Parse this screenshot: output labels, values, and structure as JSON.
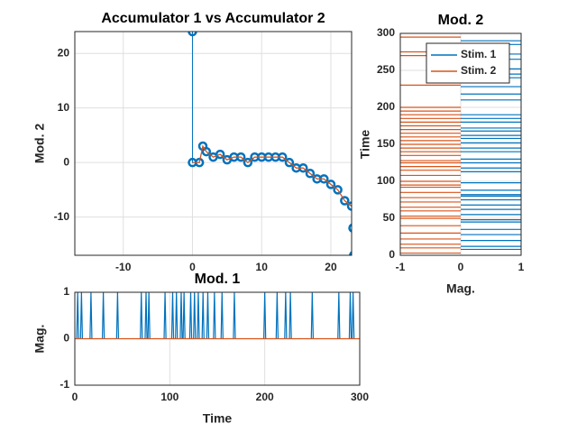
{
  "chart_data": [
    {
      "type": "line",
      "title": "Accumulator 1 vs Accumulator 2",
      "ylabel": "Mod. 2",
      "xlim": [
        -17,
        23
      ],
      "ylim": [
        -17,
        24
      ],
      "xticks": [
        -10,
        0,
        10,
        20
      ],
      "yticks": [
        -10,
        0,
        10,
        20
      ],
      "grid": true,
      "series": [
        {
          "color": "#0072bd",
          "marker": "o",
          "x": [
            0,
            0,
            1,
            1.5,
            2,
            3,
            4,
            5,
            6,
            7,
            8,
            9,
            10,
            11,
            12,
            13,
            14,
            15,
            16,
            17,
            18,
            19,
            20,
            21,
            22,
            23,
            23.2,
            23.3
          ],
          "y": [
            24,
            0,
            0,
            3,
            2,
            1,
            1.5,
            0.5,
            1,
            1,
            0,
            1,
            1,
            1,
            1,
            1,
            0,
            -1,
            -1,
            -2,
            -3,
            -3,
            -4,
            -5,
            -7,
            -8,
            -12,
            -17
          ]
        },
        {
          "color": "#d95319",
          "x": [
            0,
            1,
            1.5,
            2,
            3,
            4,
            5,
            6,
            7,
            8,
            9,
            10,
            11,
            12,
            13,
            14,
            15,
            16,
            17,
            18,
            19,
            20,
            21,
            22,
            23,
            23.2,
            23.3
          ],
          "y": [
            0,
            0,
            3,
            2,
            1,
            1.5,
            0.5,
            1,
            1,
            0,
            1,
            1,
            1,
            1,
            1,
            0,
            -1,
            -1,
            -2,
            -3,
            -3,
            -4,
            -5,
            -7,
            -8,
            -12,
            -17
          ]
        }
      ]
    },
    {
      "type": "barh",
      "title": "Mod. 2",
      "xlabel": "Mag.",
      "ylabel": "Time",
      "xlim": [
        -1,
        1
      ],
      "ylim": [
        0,
        300
      ],
      "xticks": [
        -1,
        0,
        1
      ],
      "yticks": [
        0,
        50,
        100,
        150,
        200,
        250,
        300
      ],
      "grid": true,
      "legend": "north",
      "series": [
        {
          "name": "Stim. 1",
          "color": "#0072bd",
          "times": [
            8,
            12,
            20,
            28,
            35,
            45,
            48,
            55,
            62,
            68,
            75,
            80,
            82,
            88,
            98,
            113,
            118,
            125,
            130,
            140,
            145,
            152,
            158,
            162,
            168,
            172,
            180,
            185,
            190,
            210,
            218,
            228,
            240,
            245,
            252,
            265,
            272,
            285,
            290
          ],
          "values": [
            1,
            1,
            1,
            1,
            1,
            1,
            1,
            1,
            1,
            1,
            1,
            1,
            1,
            1,
            1,
            1,
            1,
            1,
            1,
            1,
            1,
            1,
            1,
            1,
            1,
            1,
            1,
            1,
            1,
            1,
            1,
            1,
            1,
            1,
            1,
            1,
            1,
            1,
            1
          ]
        },
        {
          "name": "Stim. 2",
          "color": "#d95319",
          "times": [
            3,
            10,
            15,
            22,
            30,
            40,
            50,
            53,
            60,
            65,
            72,
            78,
            85,
            92,
            95,
            100,
            108,
            115,
            120,
            125,
            128,
            135,
            140,
            145,
            150,
            155,
            160,
            165,
            170,
            175,
            180,
            185,
            190,
            195,
            200,
            230,
            270,
            275,
            295
          ],
          "values": [
            -1,
            -1,
            -1,
            -1,
            -1,
            -1,
            -1,
            -1,
            -1,
            -1,
            -1,
            -1,
            -1,
            -1,
            -1,
            -1,
            -1,
            -1,
            -1,
            -1,
            -1,
            -1,
            -1,
            -1,
            -1,
            -1,
            -1,
            -1,
            -1,
            -1,
            -1,
            -1,
            -1,
            -1,
            -1,
            -1,
            -1,
            -1,
            -1
          ]
        }
      ]
    },
    {
      "type": "stem",
      "title": "Mod. 1",
      "xlabel": "Time",
      "ylabel": "Mag.",
      "xlim": [
        0,
        300
      ],
      "ylim": [
        -1,
        1
      ],
      "xticks": [
        0,
        100,
        200,
        300
      ],
      "yticks": [
        -1,
        0,
        1
      ],
      "grid": true,
      "series": [
        {
          "color": "#0072bd",
          "times": [
            3,
            7,
            17,
            30,
            45,
            70,
            75,
            78,
            95,
            103,
            107,
            112,
            115,
            122,
            126,
            130,
            135,
            140,
            147,
            155,
            168,
            200,
            213,
            222,
            227,
            250,
            278,
            290,
            293
          ],
          "values": [
            1,
            1,
            1,
            1,
            1,
            1,
            1,
            1,
            1,
            1,
            1,
            1,
            1,
            1,
            1,
            1,
            1,
            1,
            1,
            1,
            1,
            1,
            1,
            1,
            1,
            1,
            1,
            1,
            1
          ]
        },
        {
          "color": "#d95319",
          "x": [
            0,
            300
          ],
          "values": [
            0,
            0
          ]
        }
      ]
    }
  ]
}
